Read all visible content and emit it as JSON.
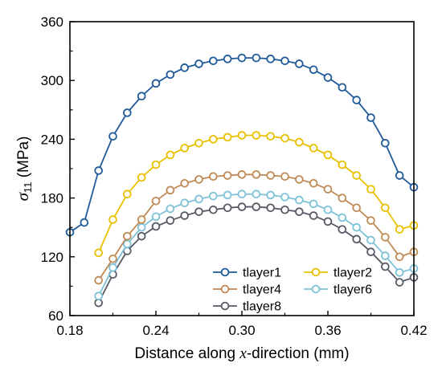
{
  "chart_data": {
    "type": "line",
    "xlabel": {
      "prefix": "Distance along ",
      "var": "x",
      "suffix": "-direction (mm)"
    },
    "ylabel": {
      "symbol": "σ",
      "subscript": "11",
      "unit": " (MPa)"
    },
    "xlim": [
      0.18,
      0.42
    ],
    "ylim": [
      60,
      360
    ],
    "xticks": [
      0.18,
      0.24,
      0.3,
      0.36,
      0.42
    ],
    "xtick_labels": [
      "0.18",
      "0.24",
      "0.30",
      "0.36",
      "0.42"
    ],
    "yticks": [
      60,
      120,
      180,
      240,
      300,
      360
    ],
    "ytick_labels": [
      "60",
      "120",
      "180",
      "240",
      "300",
      "360"
    ],
    "grid": false,
    "legend_position": "bottom-right",
    "series": [
      {
        "name": "tlayer1",
        "color": "#1f5a9a",
        "x": [
          0.18,
          0.19,
          0.2,
          0.21,
          0.22,
          0.23,
          0.24,
          0.25,
          0.26,
          0.27,
          0.28,
          0.29,
          0.3,
          0.31,
          0.32,
          0.33,
          0.34,
          0.35,
          0.36,
          0.37,
          0.38,
          0.39,
          0.4,
          0.41,
          0.42
        ],
        "y": [
          145,
          155,
          208,
          243,
          267,
          284,
          297,
          306,
          313,
          317,
          320,
          322,
          323,
          323,
          322,
          320,
          317,
          311,
          303,
          293,
          280,
          262,
          236,
          203,
          191
        ]
      },
      {
        "name": "tlayer2",
        "color": "#e8c000",
        "x": [
          0.2,
          0.21,
          0.22,
          0.23,
          0.24,
          0.25,
          0.26,
          0.27,
          0.28,
          0.29,
          0.3,
          0.31,
          0.32,
          0.33,
          0.34,
          0.35,
          0.36,
          0.37,
          0.38,
          0.39,
          0.4,
          0.41,
          0.42
        ],
        "y": [
          124,
          158,
          184,
          201,
          214,
          224,
          231,
          236,
          240,
          242,
          244,
          244,
          243,
          241,
          237,
          231,
          224,
          214,
          203,
          189,
          170,
          148,
          152
        ]
      },
      {
        "name": "tlayer4",
        "color": "#c08a55",
        "x": [
          0.2,
          0.21,
          0.22,
          0.23,
          0.24,
          0.25,
          0.26,
          0.27,
          0.28,
          0.29,
          0.3,
          0.31,
          0.32,
          0.33,
          0.34,
          0.35,
          0.36,
          0.37,
          0.38,
          0.39,
          0.4,
          0.41,
          0.42
        ],
        "y": [
          96,
          118,
          141,
          158,
          177,
          188,
          195,
          199,
          202,
          203,
          204,
          204,
          203,
          202,
          199,
          195,
          189,
          180,
          170,
          157,
          140,
          120,
          125
        ]
      },
      {
        "name": "tlayer6",
        "color": "#7ec2d8",
        "x": [
          0.2,
          0.21,
          0.22,
          0.23,
          0.24,
          0.25,
          0.26,
          0.27,
          0.28,
          0.29,
          0.3,
          0.31,
          0.32,
          0.33,
          0.34,
          0.35,
          0.36,
          0.37,
          0.38,
          0.39,
          0.4,
          0.41,
          0.42
        ],
        "y": [
          80,
          109,
          133,
          150,
          161,
          169,
          175,
          179,
          182,
          183,
          184,
          184,
          183,
          181,
          178,
          174,
          168,
          160,
          150,
          137,
          121,
          104,
          108
        ]
      },
      {
        "name": "tlayer8",
        "color": "#555a64",
        "x": [
          0.2,
          0.21,
          0.22,
          0.23,
          0.24,
          0.25,
          0.26,
          0.27,
          0.28,
          0.29,
          0.3,
          0.31,
          0.32,
          0.33,
          0.34,
          0.35,
          0.36,
          0.37,
          0.38,
          0.39,
          0.4,
          0.41,
          0.42
        ],
        "y": [
          73,
          102,
          126,
          141,
          151,
          157,
          162,
          166,
          168,
          170,
          171,
          171,
          170,
          168,
          166,
          162,
          156,
          148,
          138,
          125,
          110,
          94,
          99
        ]
      }
    ]
  }
}
